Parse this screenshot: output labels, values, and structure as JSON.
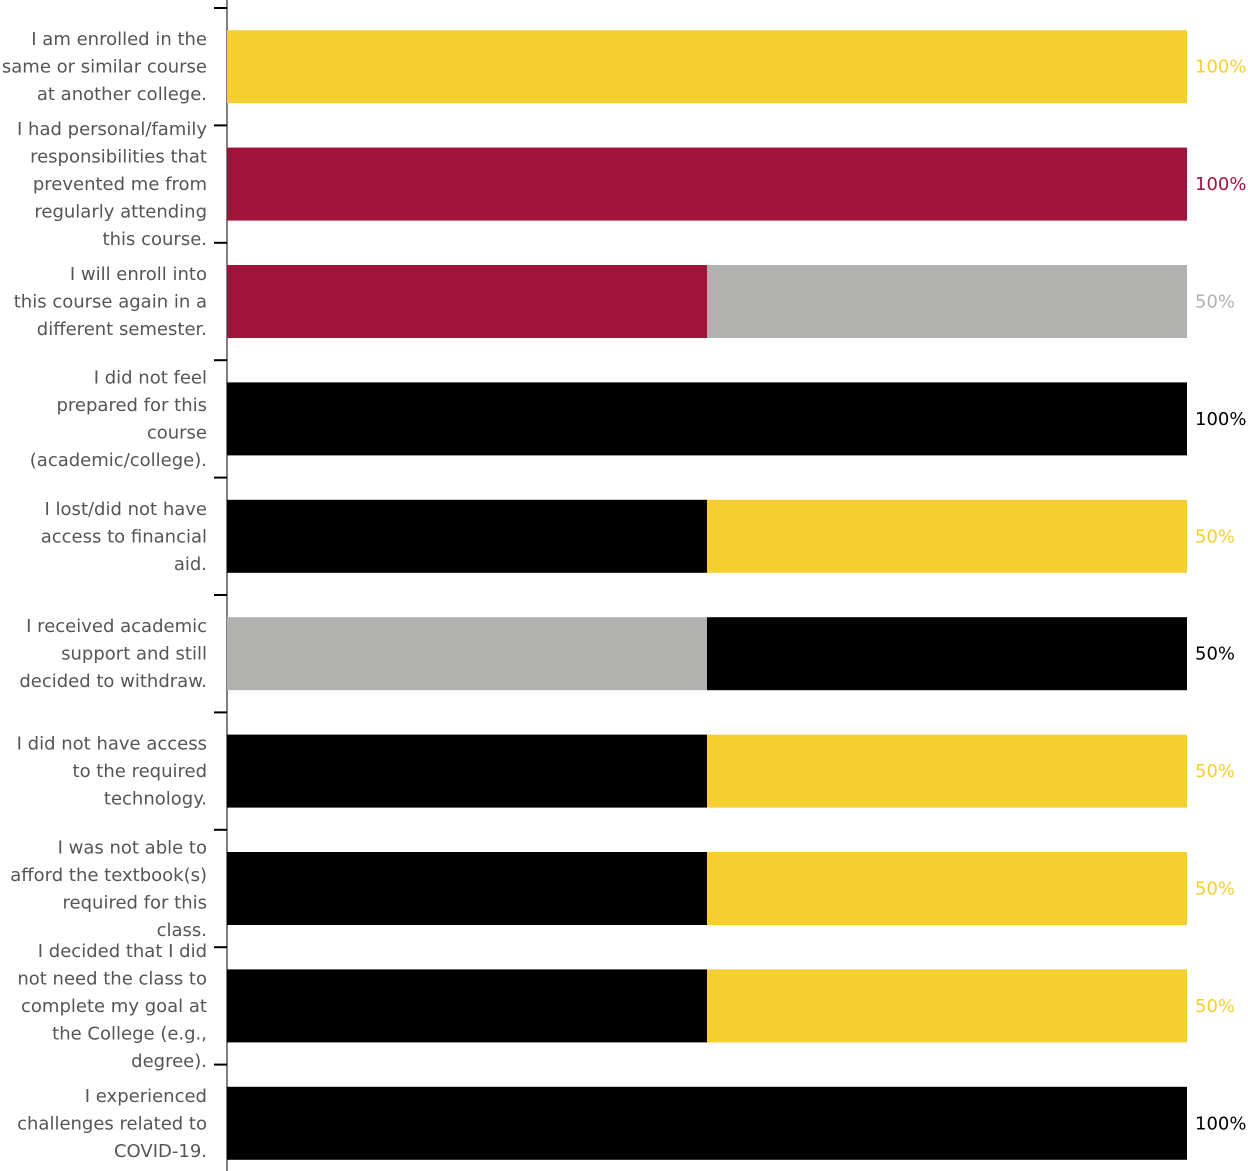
{
  "chart_data": {
    "type": "bar",
    "orientation": "horizontal",
    "stacked": true,
    "xlim": [
      0,
      100
    ],
    "grid": false,
    "legend": "none",
    "categories": [
      "I am enrolled in the same or similar course at another college.",
      "I had personal/family responsibilities that prevented me from regularly attending this course.",
      "I will enroll into this course again in a different semester.",
      "I did not feel prepared for this course (academic/college).",
      "I lost/did not have access to financial aid.",
      "I received academic support and still decided to withdraw.",
      "I did not have access to the required technology.",
      "I was not able to afford the textbook(s) required for this class.",
      "I decided that I did not need the class to complete my goal at the College (e.g., degree).",
      "I experienced challenges related to COVID-19."
    ],
    "category_lines": [
      [
        "I am enrolled in the",
        "same or similar course",
        "at another college."
      ],
      [
        "I had personal/family",
        "responsibilities that",
        "prevented me from",
        "regularly attending",
        "this course."
      ],
      [
        "I will enroll into",
        "this course again in a",
        "different semester."
      ],
      [
        "I did not feel",
        "prepared for this",
        "course",
        "(academic/college)."
      ],
      [
        "I lost/did not have",
        "access to financial",
        "aid."
      ],
      [
        "I received academic",
        "support and still",
        "decided to withdraw."
      ],
      [
        "I did not have access",
        "to the required",
        "technology."
      ],
      [
        "I was not able to",
        "afford the textbook(s)",
        "required for this",
        "class."
      ],
      [
        "I decided that I did",
        "not need the class to",
        "complete my goal at",
        "the College (e.g.,",
        "degree)."
      ],
      [
        "I experienced",
        "challenges related to",
        "COVID-19."
      ]
    ],
    "bars": [
      {
        "segments": [
          {
            "value": 100,
            "color": "#f5cf2f"
          }
        ]
      },
      {
        "segments": [
          {
            "value": 100,
            "color": "#a0143c"
          }
        ]
      },
      {
        "segments": [
          {
            "value": 50,
            "color": "#a0143c",
            "label": "50%"
          },
          {
            "value": 50,
            "color": "#b1b2b0"
          }
        ]
      },
      {
        "segments": [
          {
            "value": 100,
            "color": "#000000"
          }
        ]
      },
      {
        "segments": [
          {
            "value": 50,
            "color": "#000000",
            "label": "50%"
          },
          {
            "value": 50,
            "color": "#f5cf2f"
          }
        ]
      },
      {
        "segments": [
          {
            "value": 50,
            "color": "#b1b2b0",
            "label": "50%"
          },
          {
            "value": 50,
            "color": "#000000"
          }
        ]
      },
      {
        "segments": [
          {
            "value": 50,
            "color": "#000000",
            "label": "50%"
          },
          {
            "value": 50,
            "color": "#f5cf2f"
          }
        ]
      },
      {
        "segments": [
          {
            "value": 50,
            "color": "#000000",
            "label": "50%"
          },
          {
            "value": 50,
            "color": "#f5cf2f"
          }
        ]
      },
      {
        "segments": [
          {
            "value": 50,
            "color": "#000000",
            "label": "50%"
          },
          {
            "value": 50,
            "color": "#f5cf2f"
          }
        ]
      },
      {
        "segments": [
          {
            "value": 100,
            "color": "#000000"
          }
        ]
      }
    ],
    "end_labels": [
      {
        "text": "100%",
        "color": "#f5cf2f"
      },
      {
        "text": "100%",
        "color": "#a0143c"
      },
      {
        "text": "50%",
        "color": "#b1b2b0"
      },
      {
        "text": "100%",
        "color": "#000000"
      },
      {
        "text": "50%",
        "color": "#f5cf2f"
      },
      {
        "text": "50%",
        "color": "#000000"
      },
      {
        "text": "50%",
        "color": "#f5cf2f"
      },
      {
        "text": "50%",
        "color": "#f5cf2f"
      },
      {
        "text": "50%",
        "color": "#f5cf2f"
      },
      {
        "text": "100%",
        "color": "#000000"
      }
    ]
  }
}
